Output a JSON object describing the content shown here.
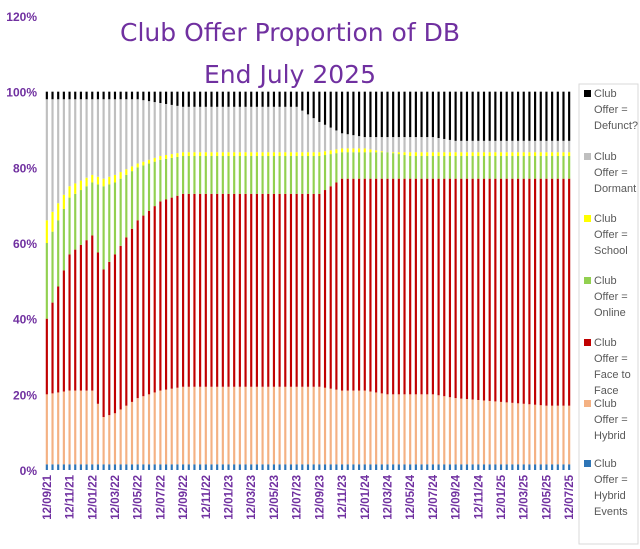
{
  "chart_data": {
    "type": "bar",
    "stacked": true,
    "percent_stacked": true,
    "title": [
      "Club Offer Proportion of DB",
      "End July 2025"
    ],
    "ylim": [
      0,
      120
    ],
    "y_ticks": [
      "0%",
      "20%",
      "40%",
      "60%",
      "80%",
      "100%",
      "120%"
    ],
    "x_tick_labels": [
      "12/09/21",
      "12/11/21",
      "12/01/22",
      "12/03/22",
      "12/05/22",
      "12/07/22",
      "12/09/22",
      "12/11/22",
      "12/01/23",
      "12/03/23",
      "12/05/23",
      "12/07/23",
      "12/09/23",
      "12/11/23",
      "12/01/24",
      "12/03/24",
      "12/05/24",
      "12/07/24",
      "12/09/24",
      "12/11/24",
      "12/01/25",
      "12/03/25",
      "12/05/25",
      "12/07/25"
    ],
    "bars_per_tick": 4,
    "grid": false,
    "legend_position": "right",
    "colors": {
      "hybrid_events": "#2e75b6",
      "hybrid": "#f4b183",
      "face_to_face": "#c00000",
      "online": "#92d050",
      "school": "#ffff00",
      "dormant": "#bfbfbf",
      "defunct": "#000000"
    },
    "legend": [
      {
        "key": "defunct",
        "lines": [
          "Club",
          "Offer =",
          "Defunct?"
        ]
      },
      {
        "key": "dormant",
        "lines": [
          "Club",
          "Offer =",
          "Dormant"
        ]
      },
      {
        "key": "school",
        "lines": [
          "Club",
          "Offer =",
          "School"
        ]
      },
      {
        "key": "online",
        "lines": [
          "Club",
          "Offer =",
          "Online"
        ]
      },
      {
        "key": "face_to_face",
        "lines": [
          "Club",
          "Offer =",
          "Face to",
          "Face"
        ]
      },
      {
        "key": "hybrid",
        "lines": [
          "Club",
          "Offer =",
          "Hybrid"
        ]
      },
      {
        "key": "hybrid_events",
        "lines": [
          "Club",
          "Offer =",
          "Hybrid",
          "Events"
        ]
      }
    ],
    "series_order": [
      "hybrid_events",
      "hybrid",
      "face_to_face",
      "online",
      "school",
      "dormant",
      "defunct"
    ],
    "cumulative_tops": {
      "x_index": [
        0,
        4,
        8,
        10,
        12,
        16,
        20,
        24,
        28,
        32,
        36,
        40,
        44,
        48,
        52,
        56,
        60,
        64,
        68,
        72,
        76,
        80,
        84,
        88,
        92,
        96
      ],
      "hybrid_events": [
        1.5,
        1.5,
        1.5,
        1.5,
        1.5,
        1.5,
        1.5,
        1.5,
        1.5,
        1.5,
        1.5,
        1.5,
        1.5,
        1.5,
        1.5,
        1.5,
        1.5,
        1.5,
        1.5,
        1.5,
        1.5,
        1.5,
        1.5,
        1.5,
        1.5,
        1.5
      ],
      "hybrid": [
        20,
        21,
        21,
        14,
        15,
        19,
        21,
        22,
        22,
        22,
        22,
        22,
        22,
        22,
        21,
        21,
        20,
        20,
        20,
        19,
        18.5,
        18,
        17.5,
        17,
        17,
        17
      ],
      "face_to_face": [
        40,
        57,
        62,
        53,
        57,
        66,
        71,
        73,
        73,
        73,
        73,
        73,
        73,
        73,
        77,
        77,
        77,
        77,
        77,
        77,
        77,
        77,
        77,
        77,
        77,
        77
      ],
      "online": [
        60,
        72,
        76,
        75,
        76,
        80,
        82,
        83,
        83,
        83,
        83,
        83,
        83,
        83,
        84,
        84,
        84,
        83,
        83,
        83,
        83,
        83,
        83,
        83,
        83,
        83
      ],
      "school": [
        66,
        75,
        78,
        77,
        78,
        81,
        83,
        84,
        84,
        84,
        84,
        84,
        84,
        84,
        85,
        85,
        84,
        84,
        84,
        84,
        84,
        84,
        84,
        84,
        84,
        84
      ],
      "dormant": [
        98,
        98,
        98,
        98,
        98,
        98,
        97,
        96,
        96,
        96,
        96,
        96,
        96,
        92,
        89,
        88,
        88,
        88,
        88,
        87,
        87,
        87,
        87,
        87,
        87,
        86
      ],
      "defunct": [
        100,
        100,
        100,
        100,
        100,
        100,
        100,
        100,
        100,
        100,
        100,
        100,
        100,
        100,
        100,
        100,
        100,
        100,
        100,
        100,
        100,
        100,
        100,
        100,
        100,
        100
      ]
    }
  }
}
